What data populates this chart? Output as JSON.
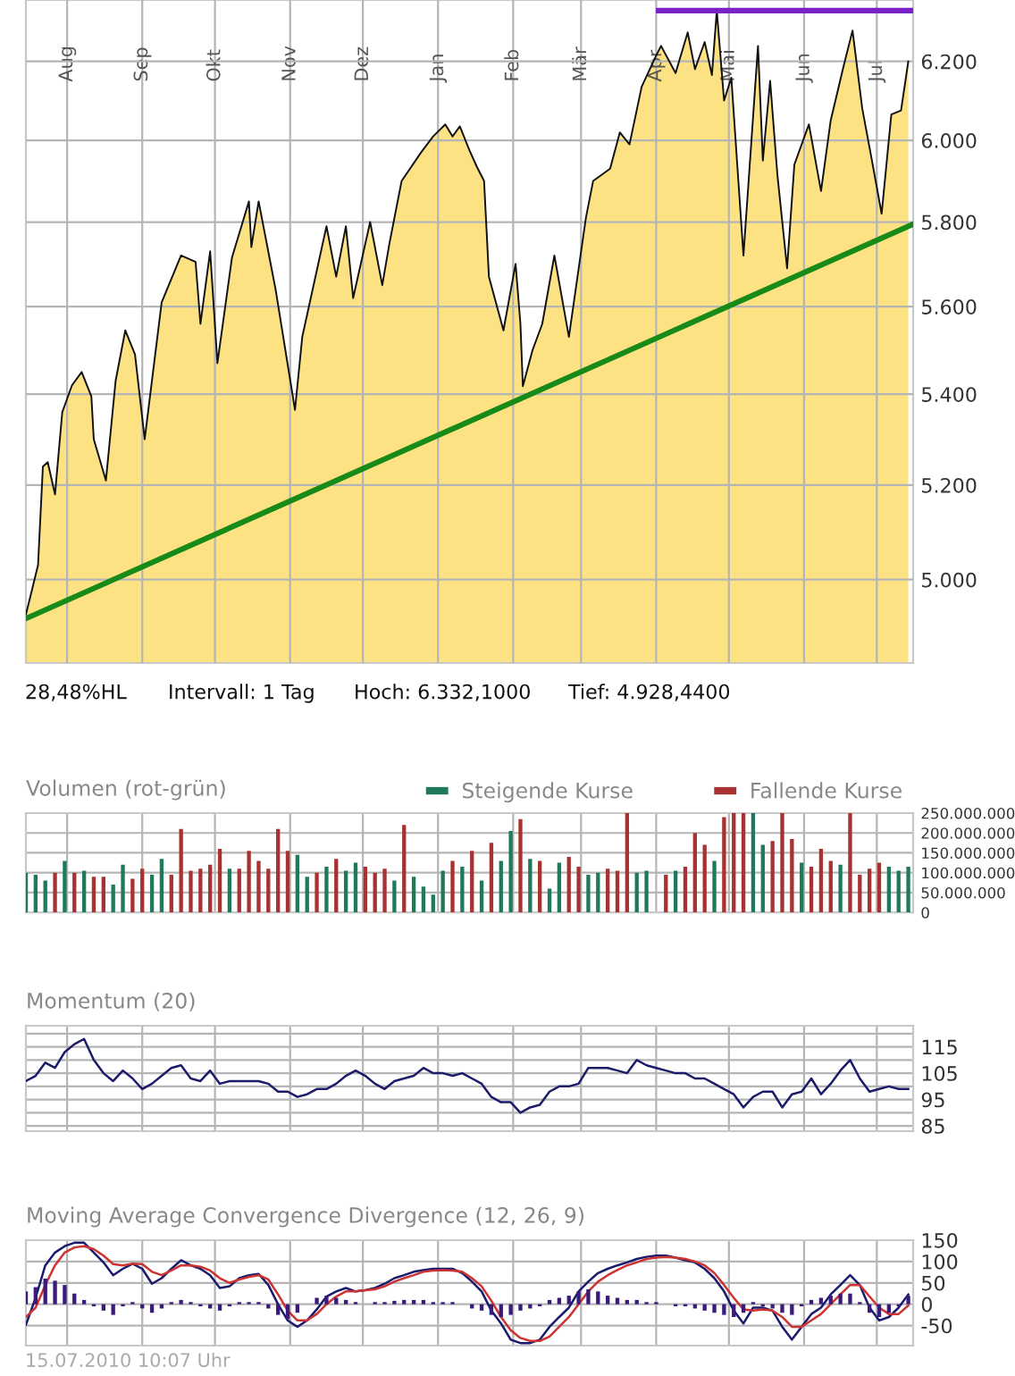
{
  "chart_data": [
    {
      "type": "area",
      "x": [
        "2009-07-15",
        "2009-07-20",
        "2009-07-22",
        "2009-07-24",
        "2009-07-27",
        "2009-07-30",
        "2009-08-03",
        "2009-08-07",
        "2009-08-11",
        "2009-08-12",
        "2009-08-17",
        "2009-08-21",
        "2009-08-25",
        "2009-08-29",
        "2009-09-02",
        "2009-09-09",
        "2009-09-17",
        "2009-09-23",
        "2009-09-25",
        "2009-09-29",
        "2009-10-02",
        "2009-10-08",
        "2009-10-15",
        "2009-10-16",
        "2009-10-19",
        "2009-10-26",
        "2009-11-03",
        "2009-11-06",
        "2009-11-16",
        "2009-11-20",
        "2009-11-24",
        "2009-11-27",
        "2009-12-04",
        "2009-12-09",
        "2009-12-12",
        "2009-12-17",
        "2009-12-25",
        "2009-12-30",
        "2010-01-04",
        "2010-01-07",
        "2010-01-10",
        "2010-01-14",
        "2010-01-17",
        "2010-01-20",
        "2010-01-22",
        "2010-01-28",
        "2010-02-02",
        "2010-02-04",
        "2010-02-05",
        "2010-02-09",
        "2010-02-13",
        "2010-02-18",
        "2010-02-24",
        "2010-03-03",
        "2010-03-06",
        "2010-03-13",
        "2010-03-17",
        "2010-03-21",
        "2010-03-26",
        "2010-04-01",
        "2010-04-03",
        "2010-04-09",
        "2010-04-14",
        "2010-04-17",
        "2010-04-21",
        "2010-04-24",
        "2010-04-26",
        "2010-04-29",
        "2010-05-02",
        "2010-05-07",
        "2010-05-13",
        "2010-05-15",
        "2010-05-18",
        "2010-05-21",
        "2010-05-25",
        "2010-05-28",
        "2010-06-03",
        "2010-06-08",
        "2010-06-12",
        "2010-06-17",
        "2010-06-21",
        "2010-06-25",
        "2010-06-29",
        "2010-07-03",
        "2010-07-07",
        "2010-07-11",
        "2010-07-14"
      ],
      "series": [
        {
          "type": "area",
          "color": "#fce282",
          "values": [
            4928,
            5030,
            5240,
            5250,
            5180,
            5360,
            5420,
            5450,
            5395,
            5300,
            5210,
            5430,
            5545,
            5490,
            5300,
            5610,
            5720,
            5705,
            5560,
            5730,
            5470,
            5715,
            5850,
            5740,
            5850,
            5640,
            5365,
            5530,
            5790,
            5670,
            5790,
            5620,
            5800,
            5650,
            5750,
            5900,
            5970,
            6010,
            6040,
            6010,
            6035,
            5975,
            5935,
            5900,
            5670,
            5545,
            5700,
            5560,
            5418,
            5500,
            5560,
            5720,
            5530,
            5810,
            5900,
            5930,
            6020,
            5990,
            6135,
            6215,
            6240,
            6170,
            6275,
            6180,
            6250,
            6165,
            6332,
            6100,
            6158,
            5720,
            6240,
            5950,
            6150,
            5915,
            5690,
            5940,
            6040,
            5875,
            6050,
            6180,
            6280,
            6080,
            5950,
            5820,
            6065,
            6075,
            6200
          ]
        },
        {
          "type": "line",
          "color": "#178a17",
          "x": [
            "2009-07-15",
            "2010-07-16"
          ],
          "values": [
            4920,
            5795
          ]
        },
        {
          "type": "line",
          "color": "#7a22c8",
          "x": [
            "2010-04-02",
            "2010-07-16"
          ],
          "values": [
            6332.1,
            6332.1
          ]
        }
      ],
      "xlim": [
        "2009-07-15",
        "2010-07-16"
      ],
      "xticks": [
        {
          "value": "2009-08-01",
          "label": "Aug"
        },
        {
          "value": "2009-09-01",
          "label": "Sep"
        },
        {
          "value": "2009-10-01",
          "label": "Okt"
        },
        {
          "value": "2009-11-01",
          "label": "Nov"
        },
        {
          "value": "2009-12-01",
          "label": "Dez"
        },
        {
          "value": "2010-01-01",
          "label": "Jan"
        },
        {
          "value": "2010-02-01",
          "label": "Feb"
        },
        {
          "value": "2010-03-01",
          "label": "Mär"
        },
        {
          "value": "2010-04-01",
          "label": "Apr"
        },
        {
          "value": "2010-05-01",
          "label": "Mai"
        },
        {
          "value": "2010-06-01",
          "label": "Jun"
        },
        {
          "value": "2010-07-01",
          "label": "Jul"
        }
      ],
      "log": true,
      "ylim": [
        4830,
        6360
      ],
      "yticks": [
        {
          "value": 5000,
          "label": "5.000"
        },
        {
          "value": 5200,
          "label": "5.200"
        },
        {
          "value": 5400,
          "label": "5.400"
        },
        {
          "value": 5600,
          "label": "5.600"
        },
        {
          "value": 5800,
          "label": "5.800"
        },
        {
          "value": 6000,
          "label": "6.000"
        },
        {
          "value": 6200,
          "label": "6.200"
        }
      ],
      "grid": true,
      "annotations": [
        "28,48%HL",
        "Intervall: 1 Tag",
        "Hoch: 6.332,1000",
        "Tief: 4.928,4400"
      ]
    },
    {
      "type": "bar",
      "title": "Volumen (rot-grün)",
      "legend": "top right",
      "tick_labels": "y",
      "grid": true,
      "x": [
        "2009-07-15",
        "2009-07-19",
        "2009-07-23",
        "2009-07-27",
        "2009-07-31",
        "2009-08-04",
        "2009-08-08",
        "2009-08-12",
        "2009-08-16",
        "2009-08-20",
        "2009-08-24",
        "2009-08-28",
        "2009-09-01",
        "2009-09-05",
        "2009-09-09",
        "2009-09-13",
        "2009-09-17",
        "2009-09-21",
        "2009-09-25",
        "2009-09-29",
        "2009-10-03",
        "2009-10-07",
        "2009-10-11",
        "2009-10-15",
        "2009-10-19",
        "2009-10-23",
        "2009-10-27",
        "2009-10-31",
        "2009-11-04",
        "2009-11-08",
        "2009-11-12",
        "2009-11-16",
        "2009-11-20",
        "2009-11-24",
        "2009-11-28",
        "2009-12-02",
        "2009-12-06",
        "2009-12-10",
        "2009-12-14",
        "2009-12-18",
        "2009-12-22",
        "2009-12-26",
        "2009-12-30",
        "2010-01-03",
        "2010-01-07",
        "2010-01-11",
        "2010-01-15",
        "2010-01-19",
        "2010-01-23",
        "2010-01-27",
        "2010-01-31",
        "2010-02-04",
        "2010-02-08",
        "2010-02-12",
        "2010-02-16",
        "2010-02-20",
        "2010-02-24",
        "2010-02-28",
        "2010-03-04",
        "2010-03-08",
        "2010-03-12",
        "2010-03-16",
        "2010-03-20",
        "2010-03-24",
        "2010-03-28",
        "2010-04-01",
        "2010-04-05",
        "2010-04-09",
        "2010-04-13",
        "2010-04-17",
        "2010-04-21",
        "2010-04-25",
        "2010-04-29",
        "2010-05-03",
        "2010-05-07",
        "2010-05-11",
        "2010-05-15",
        "2010-05-19",
        "2010-05-23",
        "2010-05-27",
        "2010-05-31",
        "2010-06-04",
        "2010-06-08",
        "2010-06-12",
        "2010-06-16",
        "2010-06-20",
        "2010-06-24",
        "2010-06-28",
        "2010-07-02",
        "2010-07-06",
        "2010-07-10",
        "2010-07-14"
      ],
      "series": [
        {
          "name": "Steigende Kurse",
          "color": "#1f7a5c",
          "values": [
            100000000,
            95000000,
            80000000,
            null,
            130000000,
            null,
            105000000,
            null,
            null,
            70000000,
            120000000,
            null,
            null,
            95000000,
            135000000,
            null,
            null,
            null,
            null,
            null,
            null,
            110000000,
            null,
            null,
            null,
            null,
            null,
            null,
            145000000,
            90000000,
            null,
            115000000,
            null,
            105000000,
            125000000,
            null,
            null,
            null,
            80000000,
            null,
            90000000,
            65000000,
            45000000,
            105000000,
            null,
            115000000,
            null,
            80000000,
            null,
            130000000,
            205000000,
            null,
            135000000,
            null,
            60000000,
            125000000,
            null,
            null,
            95000000,
            100000000,
            null,
            null,
            null,
            100000000,
            105000000,
            null,
            null,
            105000000,
            null,
            null,
            null,
            130000000,
            null,
            null,
            null,
            250000000,
            170000000,
            null,
            null,
            null,
            125000000,
            null,
            null,
            null,
            120000000,
            null,
            null,
            null,
            null,
            115000000,
            105000000,
            115000000
          ]
        },
        {
          "name": "Fallende Kurse",
          "color": "#a83232",
          "values": [
            null,
            null,
            null,
            100000000,
            null,
            100000000,
            null,
            90000000,
            90000000,
            null,
            null,
            85000000,
            110000000,
            null,
            null,
            95000000,
            210000000,
            105000000,
            110000000,
            120000000,
            160000000,
            null,
            110000000,
            155000000,
            130000000,
            110000000,
            210000000,
            155000000,
            null,
            null,
            100000000,
            null,
            135000000,
            null,
            null,
            115000000,
            100000000,
            110000000,
            null,
            220000000,
            null,
            null,
            null,
            null,
            130000000,
            null,
            155000000,
            null,
            175000000,
            null,
            null,
            235000000,
            null,
            130000000,
            null,
            null,
            140000000,
            115000000,
            null,
            null,
            110000000,
            105000000,
            250000000,
            null,
            null,
            null,
            95000000,
            null,
            115000000,
            200000000,
            170000000,
            null,
            240000000,
            250000000,
            250000000,
            null,
            null,
            180000000,
            250000000,
            185000000,
            null,
            115000000,
            160000000,
            130000000,
            null,
            250000000,
            95000000,
            110000000,
            125000000,
            null,
            null,
            null
          ]
        }
      ],
      "xlim": [
        "2009-07-15",
        "2010-07-16"
      ],
      "xticks": [
        {
          "value": "2009-08-01",
          "label": null
        },
        {
          "value": "2009-09-01",
          "label": null
        },
        {
          "value": "2009-10-01",
          "label": null
        },
        {
          "value": "2009-11-01",
          "label": null
        },
        {
          "value": "2009-12-01",
          "label": null
        },
        {
          "value": "2010-01-01",
          "label": null
        },
        {
          "value": "2010-02-01",
          "label": null
        },
        {
          "value": "2010-03-01",
          "label": null
        },
        {
          "value": "2010-04-01",
          "label": null
        },
        {
          "value": "2010-05-01",
          "label": null
        },
        {
          "value": "2010-06-01",
          "label": null
        },
        {
          "value": "2010-07-01",
          "label": null
        }
      ],
      "ylim": [
        0,
        250000000
      ],
      "yticks": [
        0,
        {
          "value": 50000000,
          "label": "50.000.000"
        },
        {
          "value": 100000000,
          "label": "100.000.000"
        },
        {
          "value": 150000000,
          "label": "150.000.000"
        },
        {
          "value": 200000000,
          "label": "200.000.000"
        },
        {
          "value": 250000000,
          "label": "250.000.000"
        }
      ]
    },
    {
      "type": "line",
      "title": "Momentum (20)",
      "tick_labels": "y",
      "grid": true,
      "x": [
        "2009-07-15",
        "2009-07-19",
        "2009-07-23",
        "2009-07-27",
        "2009-07-31",
        "2009-08-04",
        "2009-08-08",
        "2009-08-12",
        "2009-08-16",
        "2009-08-20",
        "2009-08-24",
        "2009-08-28",
        "2009-09-01",
        "2009-09-05",
        "2009-09-09",
        "2009-09-13",
        "2009-09-17",
        "2009-09-21",
        "2009-09-25",
        "2009-09-29",
        "2009-10-03",
        "2009-10-07",
        "2009-10-11",
        "2009-10-15",
        "2009-10-19",
        "2009-10-23",
        "2009-10-27",
        "2009-10-31",
        "2009-11-04",
        "2009-11-08",
        "2009-11-12",
        "2009-11-16",
        "2009-11-20",
        "2009-11-24",
        "2009-11-28",
        "2009-12-02",
        "2009-12-06",
        "2009-12-10",
        "2009-12-14",
        "2009-12-18",
        "2009-12-22",
        "2009-12-26",
        "2009-12-30",
        "2010-01-03",
        "2010-01-07",
        "2010-01-11",
        "2010-01-15",
        "2010-01-19",
        "2010-01-23",
        "2010-01-27",
        "2010-01-31",
        "2010-02-04",
        "2010-02-08",
        "2010-02-12",
        "2010-02-16",
        "2010-02-20",
        "2010-02-24",
        "2010-02-28",
        "2010-03-04",
        "2010-03-08",
        "2010-03-12",
        "2010-03-16",
        "2010-03-20",
        "2010-03-24",
        "2010-03-28",
        "2010-04-01",
        "2010-04-05",
        "2010-04-09",
        "2010-04-13",
        "2010-04-17",
        "2010-04-21",
        "2010-04-25",
        "2010-04-29",
        "2010-05-03",
        "2010-05-07",
        "2010-05-11",
        "2010-05-15",
        "2010-05-19",
        "2010-05-23",
        "2010-05-27",
        "2010-05-31",
        "2010-06-04",
        "2010-06-08",
        "2010-06-12",
        "2010-06-16",
        "2010-06-20",
        "2010-06-24",
        "2010-06-28",
        "2010-07-02",
        "2010-07-06",
        "2010-07-10",
        "2010-07-14"
      ],
      "series": [
        {
          "color": "#1c1c6b",
          "values": [
            102,
            104,
            109,
            107,
            113,
            116,
            118,
            110,
            105,
            102,
            106,
            103,
            99,
            101,
            104,
            107,
            108,
            103,
            102,
            106,
            101,
            102,
            102,
            102,
            102,
            101,
            98,
            98,
            96,
            97,
            99,
            99,
            101,
            104,
            106,
            104,
            101,
            99,
            102,
            103,
            104,
            107,
            105,
            105,
            104,
            105,
            103,
            101,
            96,
            94,
            94,
            90,
            92,
            93,
            98,
            100,
            100,
            101,
            107,
            107,
            107,
            106,
            105,
            110,
            108,
            107,
            106,
            105,
            105,
            103,
            103,
            101,
            99,
            97,
            92,
            96,
            98,
            98,
            92,
            97,
            98,
            103,
            97,
            101,
            106,
            110,
            103,
            98,
            99,
            100,
            99,
            99
          ]
        }
      ],
      "xlim": [
        "2009-07-15",
        "2010-07-16"
      ],
      "xticks": [
        {
          "value": "2009-08-01",
          "label": null
        },
        {
          "value": "2009-09-01",
          "label": null
        },
        {
          "value": "2009-10-01",
          "label": null
        },
        {
          "value": "2009-11-01",
          "label": null
        },
        {
          "value": "2009-12-01",
          "label": null
        },
        {
          "value": "2010-01-01",
          "label": null
        },
        {
          "value": "2010-02-01",
          "label": null
        },
        {
          "value": "2010-03-01",
          "label": null
        },
        {
          "value": "2010-04-01",
          "label": null
        },
        {
          "value": "2010-05-01",
          "label": null
        },
        {
          "value": "2010-06-01",
          "label": null
        },
        {
          "value": "2010-07-01",
          "label": null
        }
      ],
      "ylim": [
        83,
        123
      ],
      "yticks": [
        85,
        {
          "value": 90,
          "label": null
        },
        95,
        {
          "value": 100,
          "label": null
        },
        105,
        {
          "value": 110,
          "label": null
        },
        115,
        {
          "value": 120,
          "label": null
        }
      ]
    },
    {
      "type": "line",
      "title": "Moving Average Convergence Divergence (12, 26, 9)",
      "tick_labels": "y",
      "grid": true,
      "x": [
        "2009-07-15",
        "2009-07-19",
        "2009-07-23",
        "2009-07-27",
        "2009-07-31",
        "2009-08-04",
        "2009-08-08",
        "2009-08-12",
        "2009-08-16",
        "2009-08-20",
        "2009-08-24",
        "2009-08-28",
        "2009-09-01",
        "2009-09-05",
        "2009-09-09",
        "2009-09-13",
        "2009-09-17",
        "2009-09-21",
        "2009-09-25",
        "2009-09-29",
        "2009-10-03",
        "2009-10-07",
        "2009-10-11",
        "2009-10-15",
        "2009-10-19",
        "2009-10-23",
        "2009-10-27",
        "2009-10-31",
        "2009-11-04",
        "2009-11-08",
        "2009-11-12",
        "2009-11-16",
        "2009-11-20",
        "2009-11-24",
        "2009-11-28",
        "2009-12-02",
        "2009-12-06",
        "2009-12-10",
        "2009-12-14",
        "2009-12-18",
        "2009-12-22",
        "2009-12-26",
        "2009-12-30",
        "2010-01-03",
        "2010-01-07",
        "2010-01-11",
        "2010-01-15",
        "2010-01-19",
        "2010-01-23",
        "2010-01-27",
        "2010-01-31",
        "2010-02-04",
        "2010-02-08",
        "2010-02-12",
        "2010-02-16",
        "2010-02-20",
        "2010-02-24",
        "2010-02-28",
        "2010-03-04",
        "2010-03-08",
        "2010-03-12",
        "2010-03-16",
        "2010-03-20",
        "2010-03-24",
        "2010-03-28",
        "2010-04-01",
        "2010-04-05",
        "2010-04-09",
        "2010-04-13",
        "2010-04-17",
        "2010-04-21",
        "2010-04-25",
        "2010-04-29",
        "2010-05-03",
        "2010-05-07",
        "2010-05-11",
        "2010-05-15",
        "2010-05-19",
        "2010-05-23",
        "2010-05-27",
        "2010-05-31",
        "2010-06-04",
        "2010-06-08",
        "2010-06-12",
        "2010-06-16",
        "2010-06-20",
        "2010-06-24",
        "2010-06-28",
        "2010-07-02",
        "2010-07-06",
        "2010-07-10",
        "2010-07-14"
      ],
      "series": [
        {
          "type": "bar",
          "color": "#3a1a7a",
          "values": [
            30,
            40,
            60,
            55,
            45,
            25,
            10,
            -5,
            -15,
            -25,
            -5,
            5,
            -10,
            -20,
            -10,
            5,
            10,
            5,
            -5,
            -10,
            -15,
            -5,
            5,
            5,
            5,
            -10,
            -25,
            -35,
            -20,
            0,
            15,
            20,
            15,
            10,
            5,
            0,
            5,
            5,
            8,
            10,
            10,
            10,
            5,
            5,
            5,
            0,
            -10,
            -15,
            -25,
            -30,
            -25,
            -15,
            -10,
            -5,
            10,
            15,
            20,
            30,
            35,
            30,
            20,
            15,
            10,
            10,
            5,
            5,
            0,
            -5,
            -5,
            -10,
            -15,
            -20,
            -25,
            -30,
            -20,
            5,
            -5,
            -10,
            -20,
            -25,
            -5,
            10,
            15,
            20,
            25,
            25,
            5,
            -20,
            -30,
            -20,
            -5,
            20
          ]
        },
        {
          "color": "#1a1a6e",
          "values": [
            -48,
            15,
            91,
            121,
            136,
            144,
            144,
            121,
            98,
            68,
            83,
            95,
            83,
            48,
            61,
            83,
            103,
            91,
            83,
            68,
            38,
            42,
            61,
            68,
            71,
            45,
            0,
            -38,
            -53,
            -38,
            -12,
            18,
            30,
            38,
            30,
            33,
            38,
            48,
            61,
            68,
            76,
            80,
            83,
            83,
            83,
            73,
            53,
            30,
            -15,
            -45,
            -83,
            -91,
            -91,
            -83,
            -53,
            -30,
            -8,
            30,
            53,
            73,
            83,
            91,
            98,
            106,
            111,
            114,
            114,
            109,
            103,
            98,
            83,
            61,
            30,
            -15,
            -45,
            -8,
            -8,
            -15,
            -53,
            -83,
            -53,
            -23,
            -8,
            23,
            45,
            68,
            45,
            -8,
            -38,
            -30,
            -8,
            23
          ]
        },
        {
          "color": "#cc3333",
          "values": [
            -30,
            -8,
            45,
            91,
            121,
            133,
            136,
            129,
            114,
            94,
            91,
            95,
            94,
            76,
            68,
            79,
            91,
            91,
            88,
            79,
            61,
            50,
            58,
            64,
            68,
            58,
            23,
            -15,
            -38,
            -38,
            -23,
            0,
            18,
            30,
            30,
            33,
            35,
            42,
            53,
            61,
            68,
            76,
            79,
            80,
            79,
            76,
            61,
            42,
            8,
            -30,
            -61,
            -79,
            -86,
            -86,
            -76,
            -53,
            -30,
            0,
            30,
            53,
            68,
            80,
            91,
            98,
            106,
            109,
            111,
            109,
            106,
            100,
            91,
            73,
            45,
            15,
            -12,
            -15,
            -12,
            -15,
            -30,
            -53,
            -53,
            -38,
            -23,
            0,
            23,
            45,
            45,
            18,
            -8,
            -23,
            -23,
            -3
          ]
        }
      ],
      "xlim": [
        "2009-07-15",
        "2010-07-16"
      ],
      "xticks": [
        {
          "value": "2009-08-01",
          "label": null
        },
        {
          "value": "2009-09-01",
          "label": null
        },
        {
          "value": "2009-10-01",
          "label": null
        },
        {
          "value": "2009-11-01",
          "label": null
        },
        {
          "value": "2009-12-01",
          "label": null
        },
        {
          "value": "2010-01-01",
          "label": null
        },
        {
          "value": "2010-02-01",
          "label": null
        },
        {
          "value": "2010-03-01",
          "label": null
        },
        {
          "value": "2010-04-01",
          "label": null
        },
        {
          "value": "2010-05-01",
          "label": null
        },
        {
          "value": "2010-06-01",
          "label": null
        },
        {
          "value": "2010-07-01",
          "label": null
        }
      ],
      "ylim": [
        -97,
        150
      ],
      "yticks": [
        -50,
        0,
        50,
        100,
        150
      ],
      "annotations": [
        "15.07.2010 10:07 Uhr"
      ]
    }
  ]
}
